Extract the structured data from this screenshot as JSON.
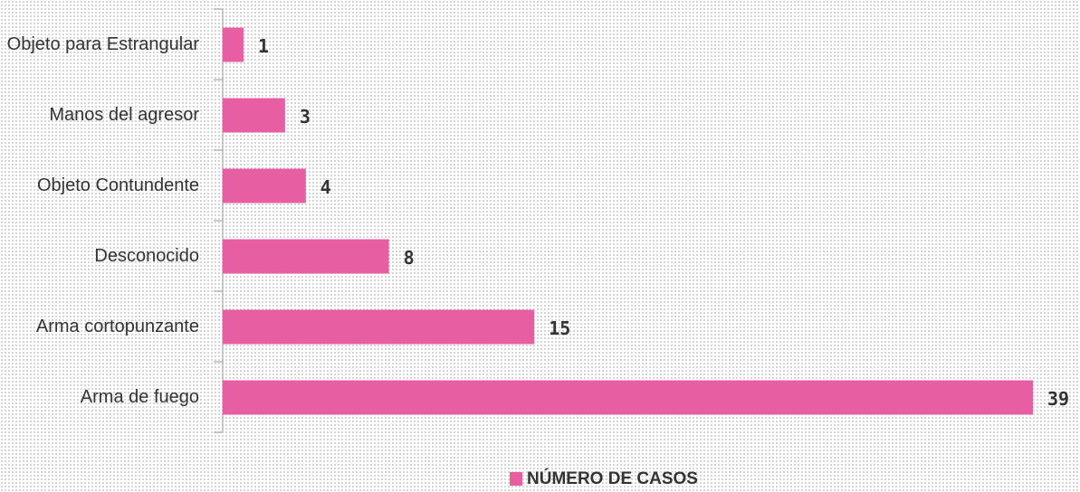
{
  "chart_data": {
    "type": "bar",
    "orientation": "horizontal",
    "categories": [
      "Objeto para Estrangular",
      "Manos del agresor",
      "Objeto Contundente",
      "Desconocido",
      "Arma cortopunzante",
      "Arma de fuego"
    ],
    "series": [
      {
        "name": "NÚMERO DE CASOS",
        "color": "#e75ea3",
        "values": [
          1,
          3,
          4,
          8,
          15,
          39
        ]
      }
    ],
    "legend": "bottom"
  }
}
